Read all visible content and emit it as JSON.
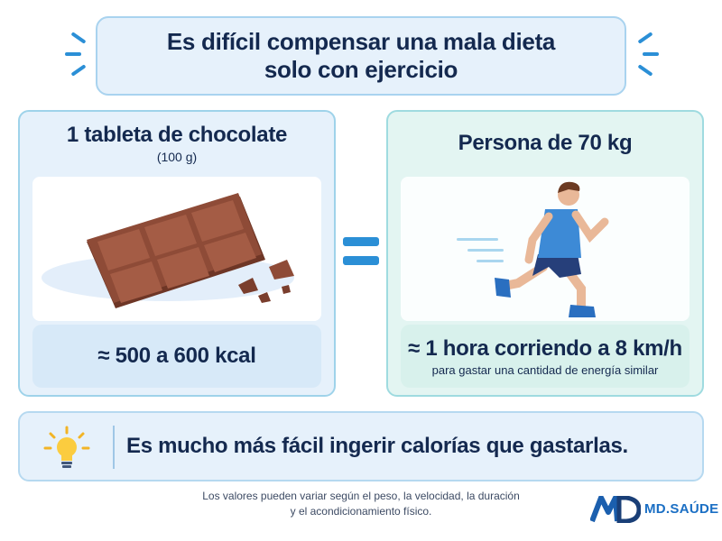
{
  "header": {
    "title_line1": "Es difícil compensar una mala dieta",
    "title_line2": "solo con ejercicio"
  },
  "left_panel": {
    "title": "1 tableta de chocolate",
    "subtitle": "(100 g)",
    "illustration": "chocolate-bar",
    "result": "≈ 500 a 600 kcal"
  },
  "right_panel": {
    "title": "Persona de 70 kg",
    "illustration": "running-person",
    "result": "≈ 1 hora corriendo a 8 km/h",
    "result_note": "para gastar una cantidad de energía similar"
  },
  "equals_icon": "equals-sign",
  "conclusion": {
    "icon": "lightbulb-icon",
    "text": "Es mucho más fácil ingerir calorías que gastarlas."
  },
  "footnote": {
    "line1": "Los valores pueden variar según el peso, la velocidad, la duración",
    "line2": "y el acondicionamiento físico."
  },
  "logo": {
    "text": "MD.SAÚDE"
  },
  "colors": {
    "navy": "#14294f",
    "accent_blue": "#2b8fd6",
    "chocolate": "#8b4a36",
    "light_blue_bg": "#e6f1fb",
    "mint_bg": "#e3f5f2"
  }
}
